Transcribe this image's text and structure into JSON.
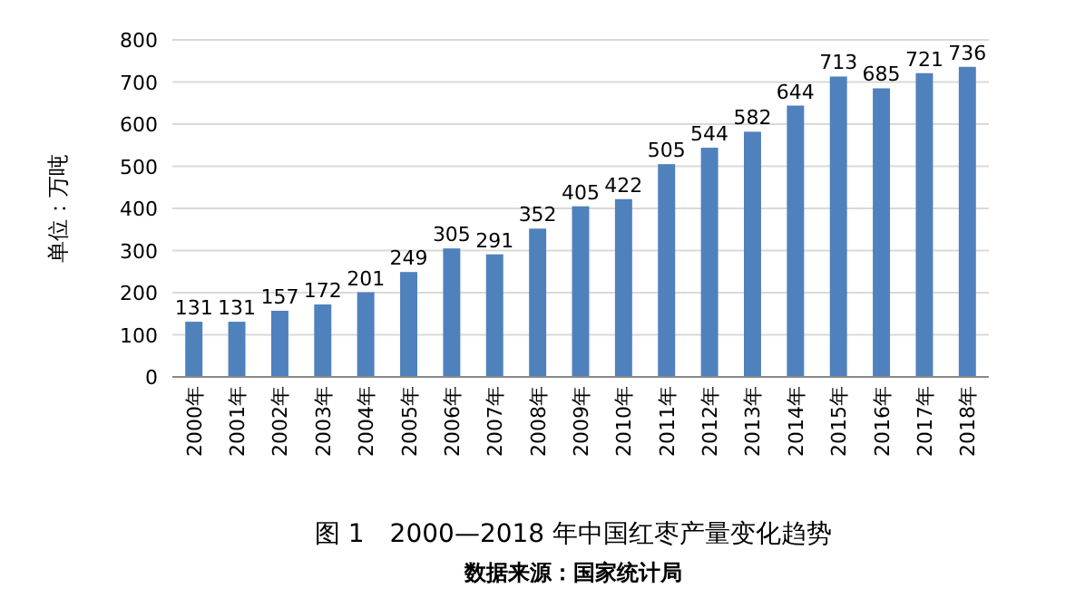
{
  "chart_data": {
    "type": "bar",
    "title": "图 1　2000—2018 年中国红枣产量变化趋势",
    "annotations": [
      "数据来源：国家统计局"
    ],
    "ylabel": "单位：万吨",
    "categories": [
      "2000年",
      "2001年",
      "2002年",
      "2003年",
      "2004年",
      "2005年",
      "2006年",
      "2007年",
      "2008年",
      "2009年",
      "2010年",
      "2011年",
      "2012年",
      "2013年",
      "2014年",
      "2015年",
      "2016年",
      "2017年",
      "2018年"
    ],
    "values": [
      131,
      131,
      157,
      172,
      201,
      249,
      305,
      291,
      352,
      405,
      422,
      505,
      544,
      582,
      644,
      713,
      685,
      721,
      736
    ],
    "color": "#4f81bd",
    "ylim": [
      0,
      800
    ],
    "yticks": [
      0,
      100,
      200,
      300,
      400,
      500,
      600,
      700,
      800
    ],
    "grid": "y",
    "data_labels": true
  }
}
